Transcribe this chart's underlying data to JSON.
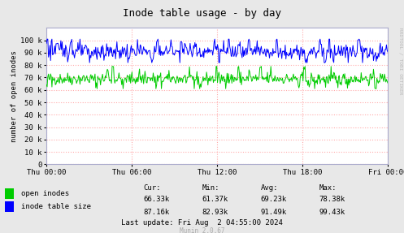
{
  "title": "Inode table usage - by day",
  "ylabel": "number of open inodes",
  "bg_color": "#e8e8e8",
  "plot_bg_color": "#ffffff",
  "grid_color": "#ffaaaa",
  "border_color": "#aaaacc",
  "ylim": [
    0,
    110000
  ],
  "yticks": [
    0,
    10000,
    20000,
    30000,
    40000,
    50000,
    60000,
    70000,
    80000,
    90000,
    100000
  ],
  "ytick_labels": [
    "0",
    "10 k",
    "20 k",
    "30 k",
    "40 k",
    "50 k",
    "60 k",
    "70 k",
    "80 k",
    "90 k",
    "100 k"
  ],
  "xtick_labels": [
    "Thu 00:00",
    "Thu 06:00",
    "Thu 12:00",
    "Thu 18:00",
    "Fri 00:00"
  ],
  "green_color": "#00cc00",
  "blue_color": "#0000ff",
  "legend_labels": [
    "open inodes",
    "inode table size"
  ],
  "stats_header": [
    "Cur:",
    "Min:",
    "Avg:",
    "Max:"
  ],
  "stats_green": [
    "66.33k",
    "61.37k",
    "69.23k",
    "78.38k"
  ],
  "stats_blue": [
    "87.16k",
    "82.93k",
    "91.49k",
    "99.43k"
  ],
  "last_update": "Last update: Fri Aug  2 04:55:00 2024",
  "munin_version": "Munin 2.0.67",
  "watermark": "RRDTOOL / TOBI OETIKER",
  "num_points": 500
}
